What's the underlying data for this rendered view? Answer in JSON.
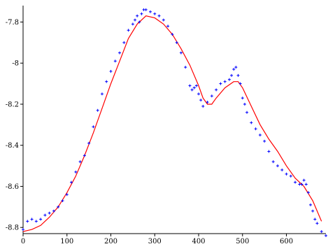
{
  "chart_data": {
    "type": "scatter",
    "title": "",
    "xlabel": "",
    "ylabel": "",
    "xlim": [
      0,
      690
    ],
    "ylim": [
      -8.83,
      -7.72
    ],
    "xticks": [
      0,
      100,
      200,
      300,
      400,
      500,
      600
    ],
    "xtick_labels": [
      "0",
      "100",
      "200",
      "300",
      "400",
      "500",
      "600"
    ],
    "yticks": [
      -7.8,
      -8,
      -8.2,
      -8.4,
      -8.6,
      -8.8
    ],
    "ytick_labels": [
      "-7.8",
      "-8",
      "-8.2",
      "-8.4",
      "-8.6",
      "-8.8"
    ],
    "grid": false,
    "legend": "none",
    "colors": {
      "markers": "#0000ff",
      "fit_line": "#ff0000",
      "axes": "#000000"
    },
    "series": [
      {
        "kind": "markers",
        "marker": "plus",
        "x": [
          0,
          10,
          20,
          30,
          40,
          50,
          60,
          70,
          80,
          90,
          100,
          110,
          120,
          130,
          140,
          150,
          160,
          170,
          180,
          190,
          200,
          210,
          220,
          230,
          240,
          250,
          255,
          260,
          265,
          270,
          275,
          280,
          290,
          300,
          310,
          320,
          330,
          340,
          350,
          360,
          370,
          380,
          385,
          390,
          395,
          400,
          405,
          410,
          420,
          430,
          440,
          450,
          460,
          470,
          475,
          480,
          485,
          490,
          495,
          500,
          505,
          510,
          520,
          530,
          540,
          550,
          560,
          570,
          580,
          590,
          600,
          610,
          620,
          630,
          635,
          640,
          645,
          650,
          655,
          660,
          665,
          670,
          680,
          690
        ],
        "y": [
          -8.81,
          -8.77,
          -8.76,
          -8.77,
          -8.76,
          -8.74,
          -8.73,
          -8.72,
          -8.7,
          -8.67,
          -8.64,
          -8.58,
          -8.53,
          -8.48,
          -8.45,
          -8.39,
          -8.31,
          -8.23,
          -8.15,
          -8.09,
          -8.04,
          -7.99,
          -7.95,
          -7.9,
          -7.84,
          -7.81,
          -7.79,
          -7.77,
          -7.8,
          -7.76,
          -7.74,
          -7.74,
          -7.75,
          -7.76,
          -7.77,
          -7.79,
          -7.82,
          -7.86,
          -7.9,
          -7.95,
          -8.02,
          -8.11,
          -8.13,
          -8.12,
          -8.11,
          -8.15,
          -8.18,
          -8.21,
          -8.19,
          -8.16,
          -8.13,
          -8.1,
          -8.09,
          -8.08,
          -8.06,
          -8.03,
          -8.02,
          -8.06,
          -8.1,
          -8.17,
          -8.2,
          -8.24,
          -8.29,
          -8.32,
          -8.35,
          -8.38,
          -8.43,
          -8.48,
          -8.5,
          -8.52,
          -8.54,
          -8.55,
          -8.58,
          -8.59,
          -8.59,
          -8.57,
          -8.59,
          -8.63,
          -8.69,
          -8.72,
          -8.76,
          -8.78,
          -8.82,
          -8.84
        ]
      },
      {
        "kind": "line",
        "x": [
          0,
          20,
          40,
          60,
          80,
          100,
          120,
          140,
          160,
          180,
          200,
          220,
          240,
          260,
          280,
          300,
          320,
          340,
          360,
          380,
          400,
          410,
          420,
          430,
          440,
          460,
          480,
          490,
          500,
          520,
          540,
          560,
          580,
          600,
          620,
          640,
          660,
          680
        ],
        "y": [
          -8.82,
          -8.81,
          -8.79,
          -8.75,
          -8.7,
          -8.63,
          -8.55,
          -8.45,
          -8.34,
          -8.22,
          -8.1,
          -7.99,
          -7.88,
          -7.81,
          -7.77,
          -7.78,
          -7.81,
          -7.86,
          -7.93,
          -8.01,
          -8.11,
          -8.17,
          -8.2,
          -8.2,
          -8.17,
          -8.12,
          -8.09,
          -8.09,
          -8.12,
          -8.21,
          -8.3,
          -8.37,
          -8.43,
          -8.5,
          -8.56,
          -8.6,
          -8.67,
          -8.77
        ]
      }
    ]
  }
}
